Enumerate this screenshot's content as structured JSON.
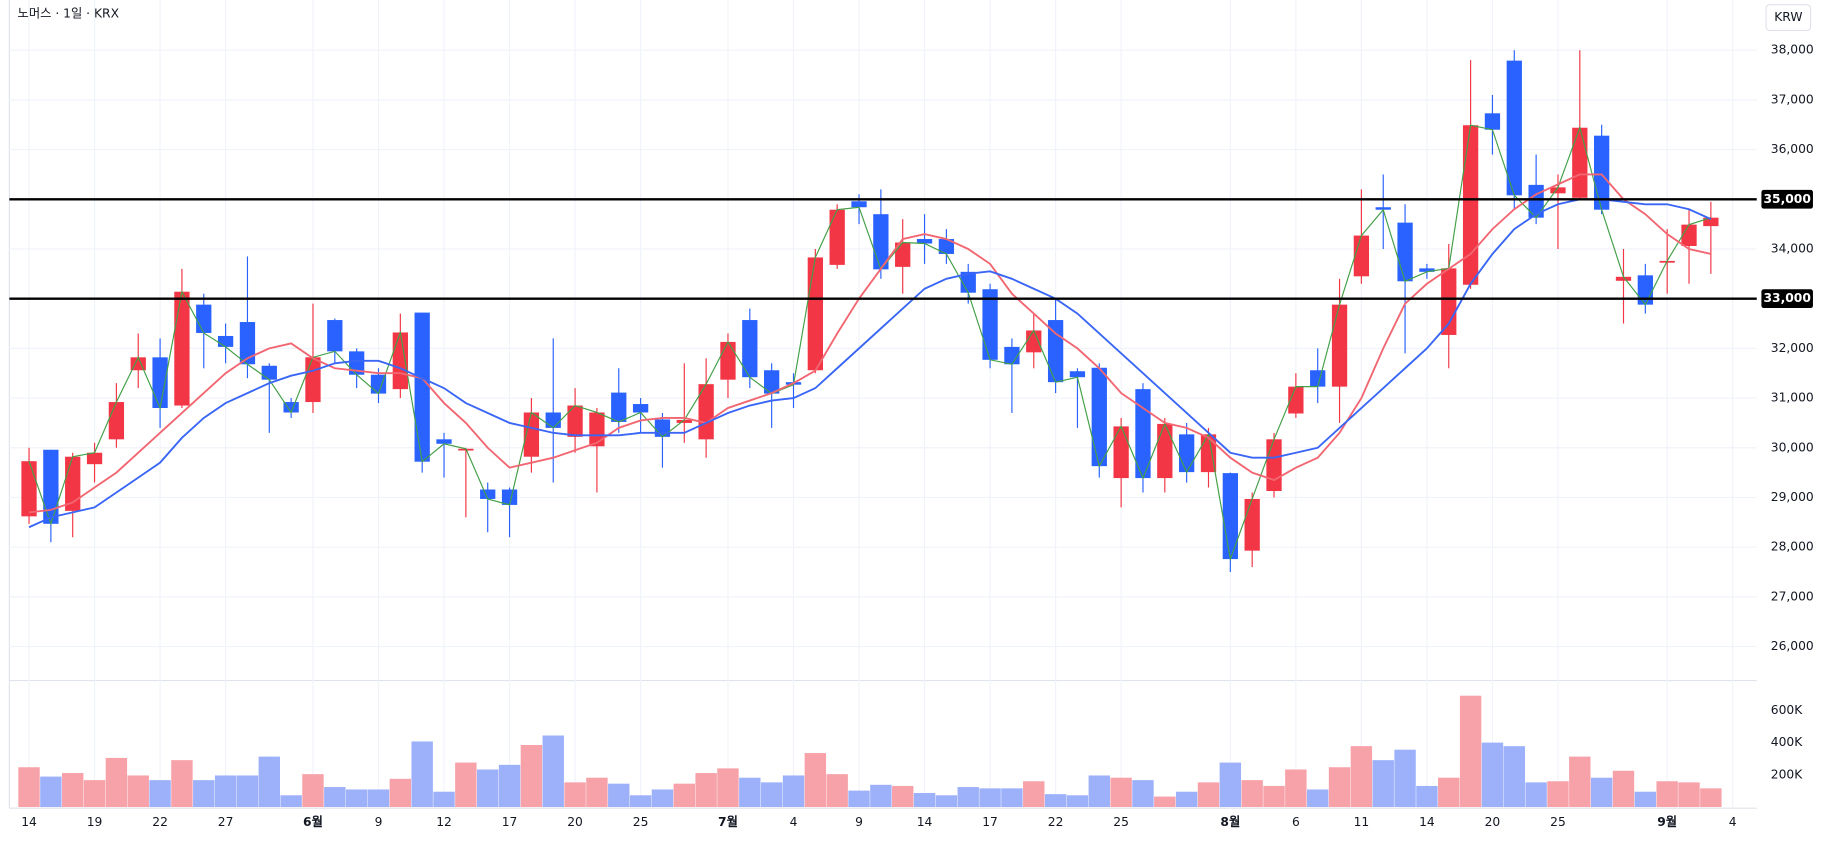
{
  "chart_data": {
    "type": "candlestick",
    "title": "노머스 · 1일 · KRX",
    "currency": "KRW",
    "up_color": "#f23645",
    "down_color": "#2962ff",
    "close_line_color": "#43a047",
    "volume_up_color": "#f7a1a9",
    "volume_down_color": "#9db1fb",
    "open": [
      28620,
      29960,
      28730,
      29670,
      30170,
      31560,
      31820,
      30850,
      32880,
      32250,
      32530,
      31650,
      30920,
      30920,
      32570,
      31940,
      31470,
      31180,
      32720,
      30170,
      29970,
      29160,
      29160,
      29820,
      30710,
      30220,
      30030,
      31110,
      30880,
      30570,
      30500,
      30170,
      31370,
      32570,
      31560,
      31320,
      31560,
      33680,
      34960,
      34700,
      33640,
      34200,
      34200,
      33540,
      33190,
      32030,
      31920,
      32570,
      31540,
      31610,
      29390,
      31180,
      29390,
      30270,
      29510,
      29490,
      27930,
      29130,
      30690,
      31560,
      31230,
      33450,
      34840,
      34530,
      33610,
      32270,
      33280,
      36730,
      37790,
      35290,
      35120,
      35030,
      36280,
      33360,
      33470,
      33740,
      34060,
      34460
    ],
    "high": [
      30000,
      29960,
      29900,
      30100,
      31300,
      32300,
      32200,
      33600,
      33100,
      32500,
      33850,
      31700,
      31000,
      32900,
      32600,
      32000,
      31600,
      32700,
      32720,
      30300,
      30000,
      29300,
      29200,
      31000,
      32200,
      31200,
      30800,
      31600,
      31000,
      30700,
      31700,
      31800,
      32300,
      32800,
      31700,
      31500,
      34000,
      34900,
      35100,
      35200,
      34600,
      34700,
      34400,
      33700,
      33300,
      32200,
      32700,
      33000,
      31600,
      31700,
      30600,
      31300,
      30600,
      30500,
      30400,
      29500,
      29100,
      30300,
      31500,
      32000,
      33400,
      35200,
      35500,
      34900,
      33700,
      34100,
      37800,
      37100,
      38000,
      35900,
      35500,
      38000,
      36500,
      34000,
      33700,
      34400,
      34800,
      34950
    ],
    "low": [
      28470,
      28100,
      28200,
      29300,
      30000,
      31200,
      30400,
      30800,
      31600,
      31700,
      31400,
      30300,
      30600,
      30700,
      31700,
      31200,
      30900,
      31000,
      29500,
      29400,
      28600,
      28300,
      28200,
      29500,
      29300,
      29900,
      29100,
      30300,
      30300,
      29600,
      30100,
      29800,
      31000,
      31200,
      30400,
      30800,
      31500,
      33600,
      34500,
      33400,
      33100,
      33700,
      33700,
      32900,
      31600,
      30700,
      31600,
      31100,
      30400,
      29400,
      28800,
      29100,
      29100,
      29300,
      29200,
      27500,
      27600,
      29000,
      30600,
      30900,
      30500,
      33300,
      34000,
      31900,
      33400,
      31600,
      33200,
      35900,
      34800,
      34500,
      34000,
      35000,
      34700,
      32500,
      32700,
      33100,
      33300,
      33500
    ],
    "close": [
      29730,
      28470,
      29820,
      29900,
      30920,
      31820,
      30800,
      33140,
      32310,
      32030,
      31680,
      31370,
      30710,
      31820,
      31940,
      31470,
      31090,
      32320,
      29720,
      30080,
      29980,
      28970,
      28850,
      30710,
      30400,
      30850,
      30710,
      30520,
      30710,
      30220,
      30560,
      31280,
      32130,
      31420,
      31090,
      31270,
      33830,
      34790,
      34840,
      33590,
      34130,
      34110,
      33900,
      33120,
      31770,
      31680,
      32360,
      31320,
      31420,
      29630,
      30430,
      29390,
      30480,
      29510,
      30270,
      27760,
      28970,
      30170,
      31230,
      31230,
      32880,
      34270,
      34790,
      33350,
      33540,
      33610,
      36490,
      36400,
      35080,
      34630,
      35240,
      36440,
      34790,
      33440,
      32880,
      33760,
      34490,
      34630
    ],
    "volume": [
      247000,
      189000,
      211000,
      167000,
      305000,
      196000,
      167000,
      291000,
      167000,
      196000,
      196000,
      313000,
      73000,
      204000,
      124000,
      109000,
      109000,
      175000,
      407000,
      95000,
      276000,
      233000,
      262000,
      385000,
      444000,
      153000,
      182000,
      145000,
      73000,
      109000,
      145000,
      211000,
      240000,
      182000,
      153000,
      196000,
      335000,
      204000,
      102000,
      138000,
      131000,
      87000,
      73000,
      124000,
      116000,
      116000,
      160000,
      80000,
      73000,
      196000,
      182000,
      167000,
      65000,
      95000,
      153000,
      276000,
      167000,
      131000,
      233000,
      109000,
      247000,
      378000,
      291000,
      356000,
      131000,
      182000,
      691000,
      400000,
      378000,
      153000,
      160000,
      313000,
      182000,
      225000,
      95000,
      160000,
      153000,
      116000
    ],
    "series": [
      {
        "color": "#f26671",
        "values": [
          28700,
          28750,
          28900,
          29200,
          29500,
          29900,
          30300,
          30700,
          31100,
          31500,
          31800,
          32000,
          32100,
          31800,
          31600,
          31550,
          31500,
          31500,
          31400,
          30900,
          30500,
          30000,
          29600,
          29700,
          29800,
          29950,
          30100,
          30400,
          30550,
          30600,
          30600,
          30500,
          30800,
          30950,
          31100,
          31300,
          31550,
          32300,
          33000,
          33600,
          34200,
          34300,
          34200,
          34000,
          33700,
          33100,
          32700,
          32300,
          32000,
          31600,
          31100,
          30800,
          30500,
          30400,
          30200,
          29800,
          29500,
          29350,
          29600,
          29800,
          30300,
          31000,
          32000,
          32900,
          33300,
          33600,
          33900,
          34400,
          34800,
          35100,
          35300,
          35500,
          35500,
          35000,
          34700,
          34300,
          34000,
          33900
        ]
      },
      {
        "color": "#3a66f5",
        "values": [
          28400,
          28600,
          28700,
          28800,
          29100,
          29400,
          29700,
          30200,
          30600,
          30900,
          31100,
          31300,
          31450,
          31550,
          31700,
          31750,
          31750,
          31600,
          31400,
          31200,
          30900,
          30700,
          30500,
          30400,
          30300,
          30250,
          30250,
          30250,
          30300,
          30300,
          30300,
          30500,
          30700,
          30850,
          30950,
          31000,
          31200,
          31600,
          32000,
          32400,
          32800,
          33200,
          33400,
          33500,
          33550,
          33400,
          33200,
          33000,
          32700,
          32300,
          31900,
          31500,
          31100,
          30700,
          30300,
          29900,
          29800,
          29800,
          29900,
          30000,
          30400,
          30800,
          31200,
          31600,
          32000,
          32500,
          33300,
          33900,
          34400,
          34700,
          34900,
          35000,
          35000,
          34950,
          34900,
          34900,
          34800,
          34600
        ]
      }
    ],
    "levels": [
      {
        "value": 35000,
        "label": "35,000"
      },
      {
        "value": 33000,
        "label": "33,000"
      }
    ],
    "xlim": [
      -0.9,
      79.1
    ],
    "xticks": [
      {
        "value": 0,
        "label": "14"
      },
      {
        "value": 3,
        "label": "19"
      },
      {
        "value": 6,
        "label": "22"
      },
      {
        "value": 9,
        "label": "27"
      },
      {
        "value": 13,
        "label": "6월"
      },
      {
        "value": 16,
        "label": "9"
      },
      {
        "value": 19,
        "label": "12"
      },
      {
        "value": 22,
        "label": "17"
      },
      {
        "value": 25,
        "label": "20"
      },
      {
        "value": 28,
        "label": "25"
      },
      {
        "value": 32,
        "label": "7월"
      },
      {
        "value": 35,
        "label": "4"
      },
      {
        "value": 38,
        "label": "9"
      },
      {
        "value": 41,
        "label": "14"
      },
      {
        "value": 44,
        "label": "17"
      },
      {
        "value": 47,
        "label": "22"
      },
      {
        "value": 50,
        "label": "25"
      },
      {
        "value": 55,
        "label": "8월"
      },
      {
        "value": 58,
        "label": "6"
      },
      {
        "value": 61,
        "label": "11"
      },
      {
        "value": 64,
        "label": "14"
      },
      {
        "value": 67,
        "label": "20"
      },
      {
        "value": 70,
        "label": "25"
      },
      {
        "value": 75,
        "label": "9월"
      },
      {
        "value": 78,
        "label": "4"
      }
    ],
    "ylim": [
      25340,
      39010
    ],
    "yticks": [
      {
        "value": 26000,
        "label": "26,000"
      },
      {
        "value": 27000,
        "label": "27,000"
      },
      {
        "value": 28000,
        "label": "28,000"
      },
      {
        "value": 29000,
        "label": "29,000"
      },
      {
        "value": 30000,
        "label": "30,000"
      },
      {
        "value": 31000,
        "label": "31,000"
      },
      {
        "value": 32000,
        "label": "32,000"
      },
      {
        "value": 33000,
        "label": "33,000"
      },
      {
        "value": 34000,
        "label": "34,000"
      },
      {
        "value": 35000,
        "label": "35,000"
      },
      {
        "value": 36000,
        "label": "36,000"
      },
      {
        "value": 37000,
        "label": "37,000"
      },
      {
        "value": 38000,
        "label": "38,000"
      }
    ],
    "volume_lim": [
      0,
      778000
    ],
    "volume_ticks": [
      {
        "value": 200000,
        "label": "200K"
      },
      {
        "value": 400000,
        "label": "400K"
      },
      {
        "value": 600000,
        "label": "600K"
      }
    ],
    "grid": true
  }
}
